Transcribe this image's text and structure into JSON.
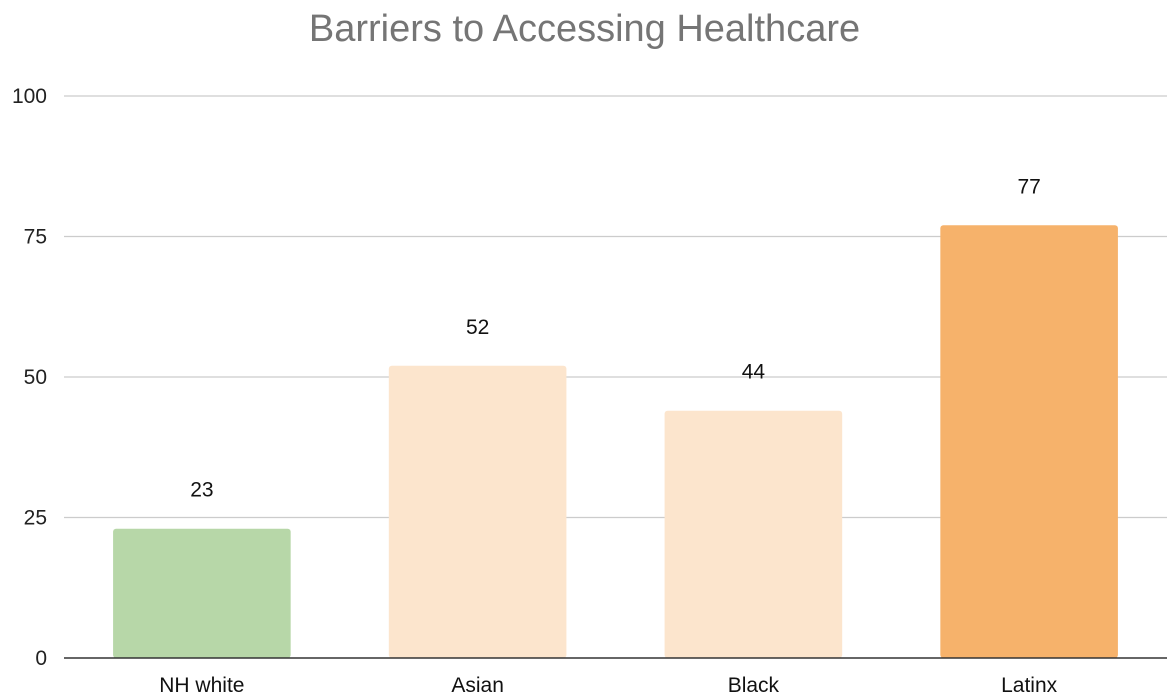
{
  "chart_data": {
    "type": "bar",
    "title": "Barriers to Accessing Healthcare",
    "xlabel": "",
    "ylabel": "",
    "categories": [
      "NH white",
      "Asian",
      "Black",
      "Latinx"
    ],
    "values": [
      23,
      52,
      44,
      77
    ],
    "data_labels": [
      "23",
      "52",
      "44",
      "77"
    ],
    "bar_colors": [
      "#b7d7a8",
      "#fce5cd",
      "#fce5cd",
      "#f6b26b"
    ],
    "ylim": [
      0,
      100
    ],
    "yticks": [
      0,
      25,
      50,
      75,
      100
    ],
    "grid": true,
    "legend": "none"
  }
}
